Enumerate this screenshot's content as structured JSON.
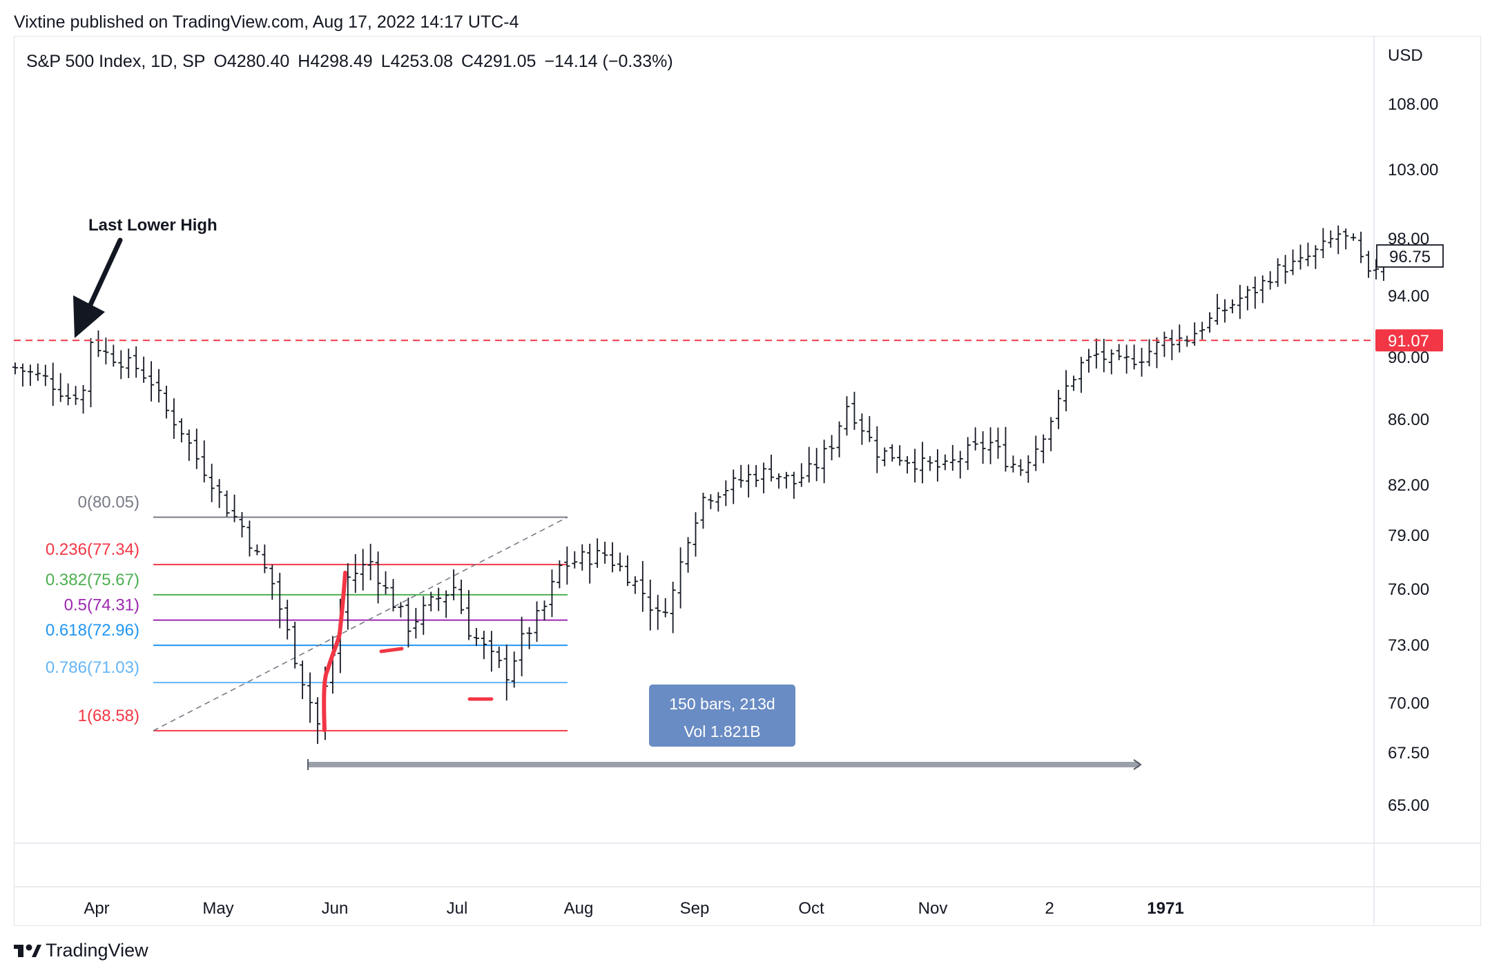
{
  "header": {
    "published_text": "Vixtine published on TradingView.com, Aug 17, 2022 14:17 UTC-4"
  },
  "symbol": {
    "name": "S&P 500 Index, 1D, SP",
    "open": "O4280.40",
    "high": "H4298.49",
    "low": "L4253.08",
    "close": "C4291.05",
    "change": "−14.14 (−0.33%)"
  },
  "footer": {
    "brand": "TradingView",
    "logo_icon": "tradingview-logo-icon"
  },
  "colors": {
    "candle": "#131722",
    "resistance": "#f23645",
    "fib_0": "#787b86",
    "fib_0236": "#f23645",
    "fib_0382": "#4caf50",
    "fib_05": "#9c27b0",
    "fib_0618": "#2196f3",
    "fib_0786": "#64b5f6",
    "fib_1": "#f23645",
    "annotation": "#f23645",
    "measure_box": "#6a8cc4"
  },
  "chart_data": {
    "type": "ohlc",
    "title": "S&P 500 Index, 1D, SP",
    "currency": "USD",
    "y_axis_labels": [
      "108.00",
      "103.00",
      "98.00",
      "94.00",
      "90.00",
      "86.00",
      "82.00",
      "79.00",
      "76.00",
      "73.00",
      "70.00",
      "67.50",
      "65.00"
    ],
    "x_axis_labels": [
      "Apr",
      "May",
      "Jun",
      "Jul",
      "Aug",
      "Sep",
      "Oct",
      "Nov",
      "2",
      "1971"
    ],
    "x_axis_bold": [
      "1971"
    ],
    "last_price_label": "96.75",
    "resistance": {
      "value": 91.07,
      "label": "91.07"
    },
    "annotation": {
      "text": "Last Lower High"
    },
    "fib_levels": [
      {
        "ratio": "0",
        "value": 80.05,
        "label": "0(80.05)"
      },
      {
        "ratio": "0.236",
        "value": 77.34,
        "label": "0.236(77.34)"
      },
      {
        "ratio": "0.382",
        "value": 75.67,
        "label": "0.382(75.67)"
      },
      {
        "ratio": "0.5",
        "value": 74.31,
        "label": "0.5(74.31)"
      },
      {
        "ratio": "0.618",
        "value": 72.96,
        "label": "0.618(72.96)"
      },
      {
        "ratio": "0.786",
        "value": 71.03,
        "label": "0.786(71.03)"
      },
      {
        "ratio": "1",
        "value": 68.58,
        "label": "1(68.58)"
      }
    ],
    "measure": {
      "line1": "150 bars, 213d",
      "line2": "Vol 1.821B"
    },
    "price_path": [
      [
        0,
        89.3
      ],
      [
        4,
        88.6
      ],
      [
        7,
        87.4
      ],
      [
        9,
        87.8
      ],
      [
        10,
        91.07
      ],
      [
        12,
        90.2
      ],
      [
        16,
        89.3
      ],
      [
        18,
        88.4
      ],
      [
        20,
        86.5
      ],
      [
        22,
        85.3
      ],
      [
        24,
        83.6
      ],
      [
        26,
        82.2
      ],
      [
        28,
        80.6
      ],
      [
        30,
        79.5
      ],
      [
        32,
        77.8
      ],
      [
        34,
        76.3
      ],
      [
        36,
        73.6
      ],
      [
        38,
        71.2
      ],
      [
        40,
        68.9
      ],
      [
        42,
        72.5
      ],
      [
        44,
        76.6
      ],
      [
        47,
        77.5
      ],
      [
        49,
        75.9
      ],
      [
        52,
        74.0
      ],
      [
        55,
        75.2
      ],
      [
        58,
        76.1
      ],
      [
        60,
        73.8
      ],
      [
        63,
        72.3
      ],
      [
        65,
        71.5
      ],
      [
        67,
        73.2
      ],
      [
        70,
        75.0
      ],
      [
        72,
        77.2
      ],
      [
        75,
        77.7
      ],
      [
        78,
        77.9
      ],
      [
        81,
        76.8
      ],
      [
        83,
        75.8
      ],
      [
        85,
        74.5
      ],
      [
        87,
        75.8
      ],
      [
        89,
        79.0
      ],
      [
        91,
        81.2
      ],
      [
        94,
        81.8
      ],
      [
        97,
        82.5
      ],
      [
        100,
        82.8
      ],
      [
        103,
        82.1
      ],
      [
        106,
        83.2
      ],
      [
        108,
        84.5
      ],
      [
        110,
        86.9
      ],
      [
        112,
        85.5
      ],
      [
        114,
        84.0
      ],
      [
        117,
        83.7
      ],
      [
        120,
        83.2
      ],
      [
        123,
        83.0
      ],
      [
        126,
        84.0
      ],
      [
        129,
        84.5
      ],
      [
        131,
        83.5
      ],
      [
        133,
        83.0
      ],
      [
        135,
        84.3
      ],
      [
        137,
        86.0
      ],
      [
        139,
        88.0
      ],
      [
        141,
        89.5
      ],
      [
        143,
        90.1
      ],
      [
        146,
        89.6
      ],
      [
        149,
        90.0
      ],
      [
        152,
        91.1
      ],
      [
        155,
        91.2
      ],
      [
        157,
        92.0
      ],
      [
        160,
        93.1
      ],
      [
        162,
        93.8
      ],
      [
        164,
        94.4
      ],
      [
        167,
        95.8
      ],
      [
        170,
        96.3
      ],
      [
        173,
        97.4
      ],
      [
        175,
        98.3
      ],
      [
        177,
        97.6
      ],
      [
        179,
        95.3
      ],
      [
        181,
        96.75
      ]
    ]
  }
}
